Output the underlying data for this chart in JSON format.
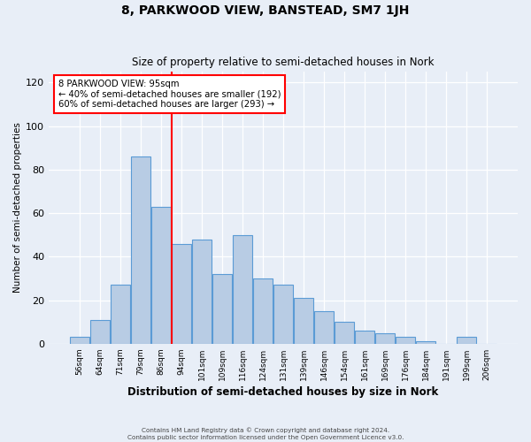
{
  "title": "8, PARKWOOD VIEW, BANSTEAD, SM7 1JH",
  "subtitle": "Size of property relative to semi-detached houses in Nork",
  "xlabel": "Distribution of semi-detached houses by size in Nork",
  "ylabel": "Number of semi-detached properties",
  "bin_labels": [
    "56sqm",
    "64sqm",
    "71sqm",
    "79sqm",
    "86sqm",
    "94sqm",
    "101sqm",
    "109sqm",
    "116sqm",
    "124sqm",
    "131sqm",
    "139sqm",
    "146sqm",
    "154sqm",
    "161sqm",
    "169sqm",
    "176sqm",
    "184sqm",
    "191sqm",
    "199sqm",
    "206sqm"
  ],
  "bar_heights": [
    3,
    11,
    27,
    86,
    63,
    46,
    48,
    32,
    50,
    30,
    27,
    21,
    15,
    10,
    6,
    5,
    3,
    1,
    0,
    3,
    0
  ],
  "bar_color": "#b8cce4",
  "bar_edge_color": "#5b9bd5",
  "vline_x_index": 5,
  "vline_label": "8 PARKWOOD VIEW: 95sqm",
  "annotation_line1": "← 40% of semi-detached houses are smaller (192)",
  "annotation_line2": "60% of semi-detached houses are larger (293) →",
  "ylim": [
    0,
    125
  ],
  "yticks": [
    0,
    20,
    40,
    60,
    80,
    100,
    120
  ],
  "footer1": "Contains HM Land Registry data © Crown copyright and database right 2024.",
  "footer2": "Contains public sector information licensed under the Open Government Licence v3.0.",
  "bg_color": "#e8eef7",
  "plot_bg_color": "#e8eef7"
}
